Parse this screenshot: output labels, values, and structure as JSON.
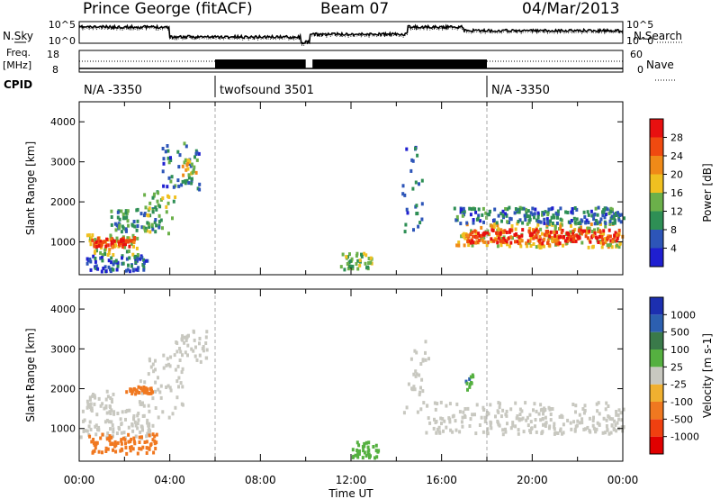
{
  "header": {
    "station": "Prince George (fitACF)",
    "beam": "Beam 07",
    "date": "04/Mar/2013"
  },
  "side_labels": {
    "nsky": "N.Sky",
    "nsearch": "N.Search",
    "freq": "Freq.",
    "freq_unit": "[MHz]",
    "nave": "Nave",
    "cpid": "CPID"
  },
  "noise_panel": {
    "left_ticks": [
      "10^5",
      "10^0"
    ],
    "right_ticks": [
      "10^5",
      "10^0"
    ]
  },
  "freq_panel": {
    "left_ticks": [
      "18",
      "8"
    ],
    "right_ticks": [
      "60",
      "0"
    ]
  },
  "cpid_labels": [
    {
      "text": "N/A -3350",
      "start_hour": 0
    },
    {
      "text": "twofsound 3501",
      "start_hour": 6
    },
    {
      "text": "N/A -3350",
      "start_hour": 18
    }
  ],
  "colors": {
    "power": [
      "#1f1fd0",
      "#2d55b8",
      "#2e8f55",
      "#6bb04a",
      "#f0c020",
      "#f08a18",
      "#f04a10",
      "#e81010"
    ],
    "velocity": [
      "#1c2fb0",
      "#2c5fb0",
      "#3a7a4a",
      "#55b040",
      "#c8c8c0",
      "#f0b030",
      "#f07820",
      "#f04010",
      "#e00000"
    ],
    "ground_scatter": "#c8c8c0"
  },
  "chart_data": [
    {
      "type": "heatmap",
      "name": "power",
      "ylabel": "Slant Range [km]",
      "xlabel": "Time UT",
      "x_ticks": [
        "00:00",
        "04:00",
        "08:00",
        "12:00",
        "16:00",
        "20:00",
        "00:00"
      ],
      "y_ticks": [
        "1000",
        "2000",
        "3000",
        "4000"
      ],
      "xlim": [
        0,
        24
      ],
      "ylim": [
        180,
        4500
      ],
      "colorbar": {
        "label": "Power [dB]",
        "ticks": [
          "4",
          "8",
          "12",
          "16",
          "20",
          "24",
          "28"
        ],
        "range": [
          0,
          32
        ]
      },
      "regions": [
        {
          "x": [
            0.3,
            2.6
          ],
          "y": [
            700,
            1300
          ],
          "value": 16
        },
        {
          "x": [
            0.5,
            2.4
          ],
          "y": [
            900,
            1150
          ],
          "value": 28
        },
        {
          "x": [
            1.2,
            3.5
          ],
          "y": [
            1300,
            1900
          ],
          "value": 10
        },
        {
          "x": [
            2.8,
            4.2
          ],
          "y": [
            1200,
            2300
          ],
          "value": 14
        },
        {
          "x": [
            3.6,
            5.3
          ],
          "y": [
            2300,
            3500
          ],
          "value": 8
        },
        {
          "x": [
            4.5,
            5.2
          ],
          "y": [
            2700,
            3100
          ],
          "value": 18
        },
        {
          "x": [
            0.3,
            3.0
          ],
          "y": [
            300,
            700
          ],
          "value": 6
        },
        {
          "x": [
            11.5,
            13.0
          ],
          "y": [
            350,
            750
          ],
          "value": 14
        },
        {
          "x": [
            14.2,
            15.2
          ],
          "y": [
            1200,
            3400
          ],
          "value": 6
        },
        {
          "x": [
            16.6,
            24.0
          ],
          "y": [
            900,
            1500
          ],
          "value": 18
        },
        {
          "x": [
            17.0,
            23.8
          ],
          "y": [
            1000,
            1350
          ],
          "value": 28
        },
        {
          "x": [
            16.5,
            24.0
          ],
          "y": [
            1500,
            1900
          ],
          "value": 8
        }
      ]
    },
    {
      "type": "heatmap",
      "name": "velocity",
      "ylabel": "Slant Range [km]",
      "xlabel": "Time UT",
      "x_ticks": [
        "00:00",
        "04:00",
        "08:00",
        "12:00",
        "16:00",
        "20:00",
        "00:00"
      ],
      "y_ticks": [
        "1000",
        "2000",
        "3000",
        "4000"
      ],
      "xlim": [
        0,
        24
      ],
      "ylim": [
        180,
        4500
      ],
      "colorbar": {
        "label": "Velocity [m s-1]",
        "ticks": [
          "1000",
          "500",
          "100",
          "25",
          "-25",
          "-100",
          "-500",
          "-1000"
        ]
      },
      "regions": [
        {
          "x": [
            0.0,
            3.2
          ],
          "y": [
            800,
            1500
          ],
          "value": 0
        },
        {
          "x": [
            0.3,
            1.5
          ],
          "y": [
            1500,
            2000
          ],
          "value": 0
        },
        {
          "x": [
            2.6,
            4.6
          ],
          "y": [
            1300,
            2900
          ],
          "value": 0
        },
        {
          "x": [
            4.2,
            5.6
          ],
          "y": [
            2700,
            3500
          ],
          "value": 0
        },
        {
          "x": [
            0.4,
            3.4
          ],
          "y": [
            400,
            900
          ],
          "value": -300
        },
        {
          "x": [
            2.0,
            3.2
          ],
          "y": [
            1900,
            2100
          ],
          "value": -150
        },
        {
          "x": [
            12.0,
            13.2
          ],
          "y": [
            300,
            700
          ],
          "value": 80
        },
        {
          "x": [
            14.3,
            15.4
          ],
          "y": [
            1200,
            3400
          ],
          "value": 0
        },
        {
          "x": [
            15.2,
            24.0
          ],
          "y": [
            900,
            1700
          ],
          "value": 0
        },
        {
          "x": [
            17.0,
            17.4
          ],
          "y": [
            2000,
            2400
          ],
          "value": 300
        }
      ]
    }
  ]
}
